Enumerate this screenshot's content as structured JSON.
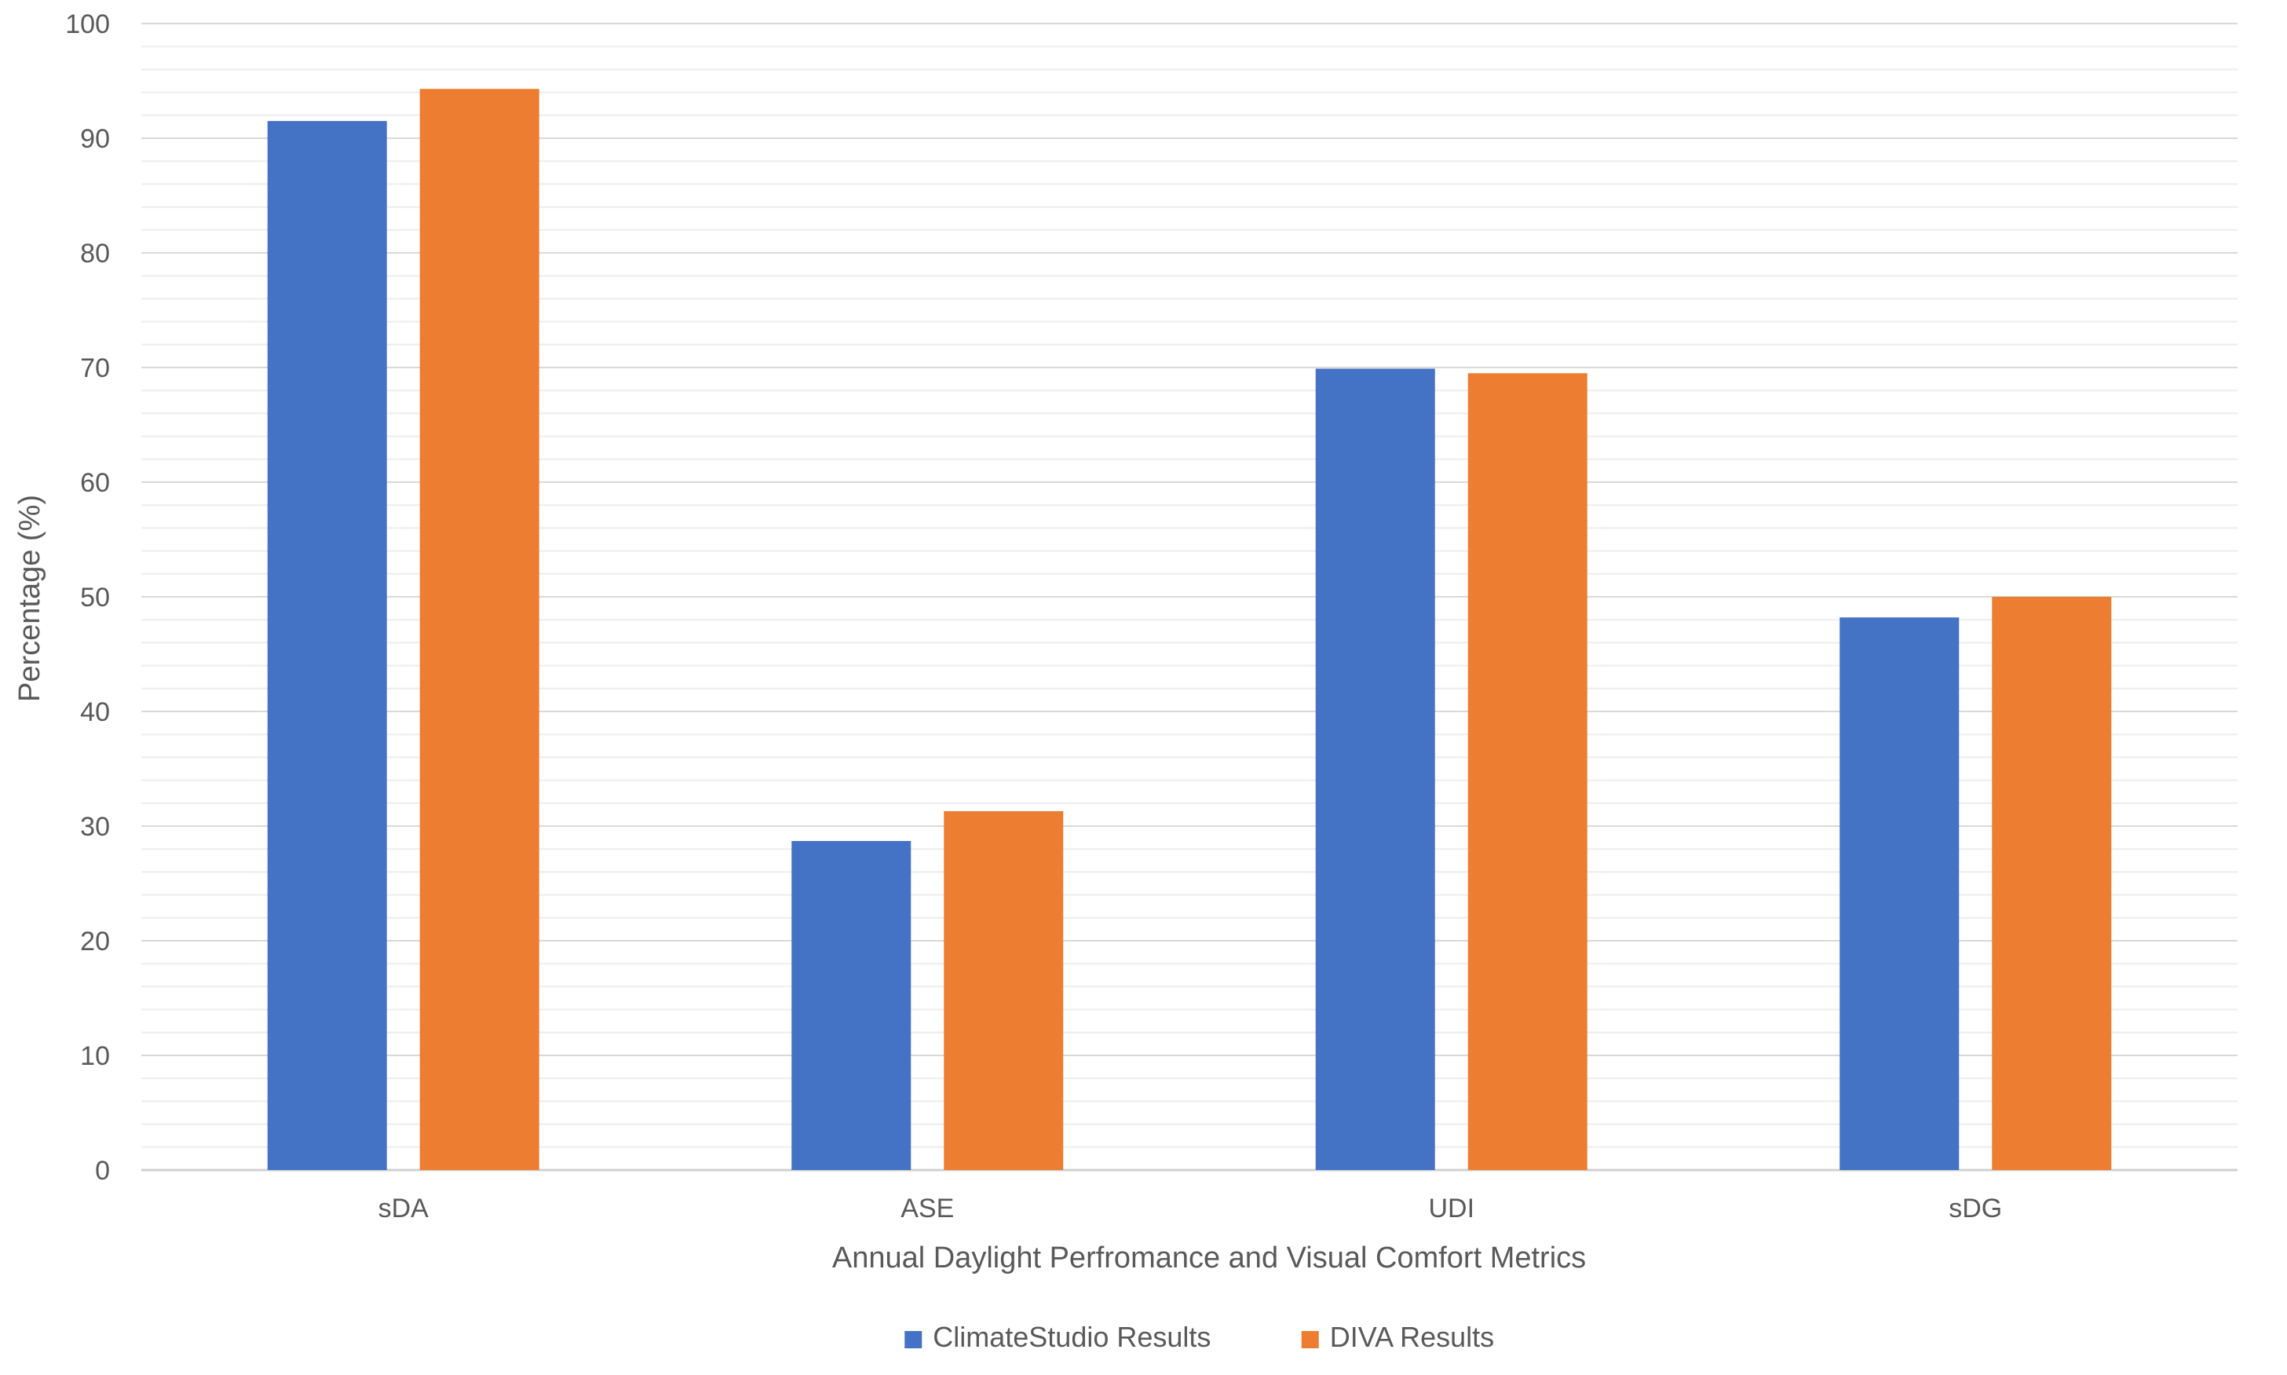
{
  "chart_data": {
    "type": "bar",
    "title": "",
    "xlabel": "Annual Daylight Perfromance and Visual Comfort Metrics",
    "ylabel": "Percentage (%)",
    "categories": [
      "sDA",
      "ASE",
      "UDI",
      "sDG"
    ],
    "series": [
      {
        "name": "ClimateStudio Results",
        "color": "#4472C4",
        "values": [
          91.5,
          28.7,
          69.9,
          48.2
        ]
      },
      {
        "name": "DIVA Results",
        "color": "#ED7D31",
        "values": [
          94.3,
          31.3,
          69.5,
          50.0
        ]
      }
    ],
    "ylim": [
      0,
      100
    ],
    "yticks": [
      0,
      10,
      20,
      30,
      40,
      50,
      60,
      70,
      80,
      90,
      100
    ],
    "grid": {
      "major": true,
      "minor": true,
      "minor_step": 2
    },
    "legend": "bottom-center"
  }
}
